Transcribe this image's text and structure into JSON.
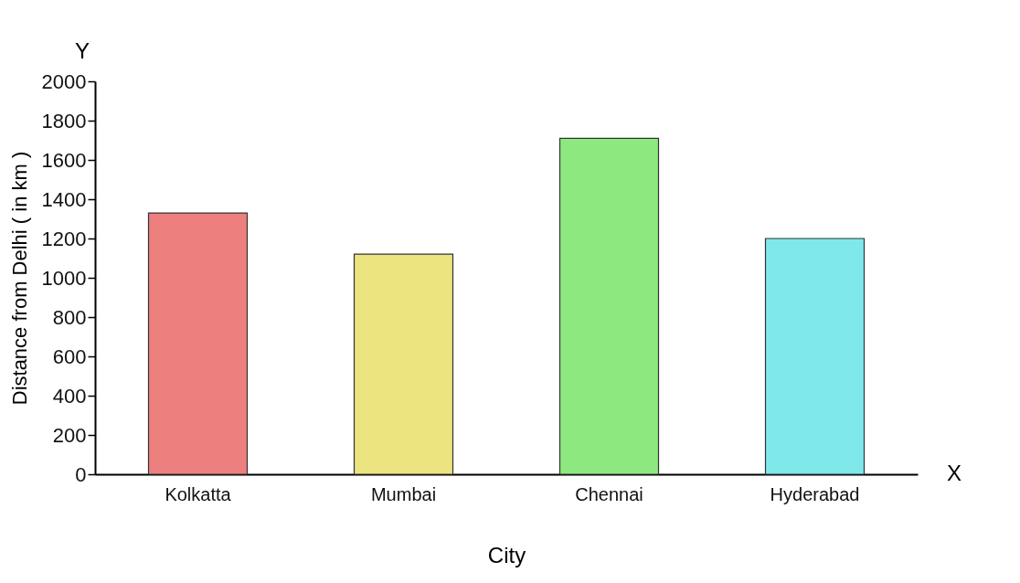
{
  "chart_data": {
    "type": "bar",
    "xlabel": "City",
    "ylabel": "Distance from Delhi ( in km )",
    "categories": [
      "Kolkatta",
      "Mumbai",
      "Chennai",
      "Hyderabad"
    ],
    "values": [
      1330,
      1120,
      1710,
      1200
    ],
    "colors": [
      "#ee7f7f",
      "#ebe47f",
      "#8de87f",
      "#7fe8ea"
    ],
    "ylim": [
      0,
      2000
    ],
    "yticks": [
      0,
      200,
      400,
      600,
      800,
      1000,
      1200,
      1400,
      1600,
      1800,
      2000
    ],
    "grid": false,
    "annotations": [
      "Y",
      "X"
    ]
  }
}
